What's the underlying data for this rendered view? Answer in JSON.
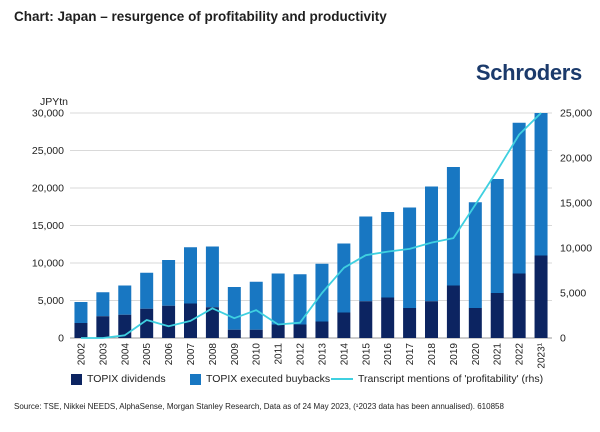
{
  "header": {
    "title": "Chart: Japan – resurgence of profitability and productivity",
    "logo_text": "Schroders"
  },
  "colors": {
    "dividends": "#0c2461",
    "buybacks": "#1877c2",
    "mentions": "#3fd0e0",
    "grid": "#d9d9d9",
    "logo": "#1b3a6b"
  },
  "chart_data": {
    "type": "bar",
    "stacked": true,
    "categories": [
      "2002",
      "2003",
      "2004",
      "2005",
      "2006",
      "2007",
      "2008",
      "2009",
      "2010",
      "2011",
      "2012",
      "2013",
      "2014",
      "2015",
      "2016",
      "2017",
      "2018",
      "2019",
      "2020",
      "2021",
      "2022",
      "2023¹"
    ],
    "series": [
      {
        "name": "TOPIX dividends",
        "axis": "left",
        "values": [
          2000,
          2900,
          3100,
          3900,
          4300,
          4600,
          4100,
          1100,
          1100,
          1800,
          1800,
          2200,
          3400,
          4900,
          5400,
          4000,
          4900,
          7000,
          4000,
          6000,
          8600,
          11000
        ]
      },
      {
        "name": "TOPIX executed buybacks",
        "axis": "left",
        "values": [
          2800,
          3200,
          3900,
          4800,
          6100,
          7500,
          8100,
          5700,
          6400,
          6800,
          6700,
          7700,
          9200,
          11300,
          11400,
          13400,
          15300,
          15800,
          14100,
          15200,
          20100,
          19000
        ]
      },
      {
        "name": "Transcript mentions of 'profitability' (rhs)",
        "type": "line",
        "axis": "right",
        "values": [
          0,
          0,
          300,
          2000,
          1300,
          1900,
          3300,
          2200,
          3100,
          1500,
          1700,
          5000,
          7800,
          9200,
          9600,
          9900,
          10600,
          11100,
          14800,
          18600,
          22600,
          25000
        ]
      }
    ],
    "left_axis": {
      "unit_label": "JPYtn",
      "min": 0,
      "max": 30000,
      "ticks": [
        "0",
        "5,000",
        "10,000",
        "15,000",
        "20,000",
        "25,000",
        "30,000"
      ]
    },
    "right_axis": {
      "min": 0,
      "max": 25000,
      "ticks": [
        "0",
        "5,000",
        "10,000",
        "15,000",
        "20,000",
        "25,000"
      ]
    },
    "grid": true,
    "legend_position": "bottom"
  },
  "legend": {
    "dividends": "TOPIX dividends",
    "buybacks": "TOPIX executed buybacks",
    "mentions": "Transcript mentions of 'profitability' (rhs)"
  },
  "source": "Source: TSE, Nikkei NEEDS, AlphaSense, Morgan Stanley Research, Data as of 24 May 2023, (¹2023 data has been annualised). 610858"
}
